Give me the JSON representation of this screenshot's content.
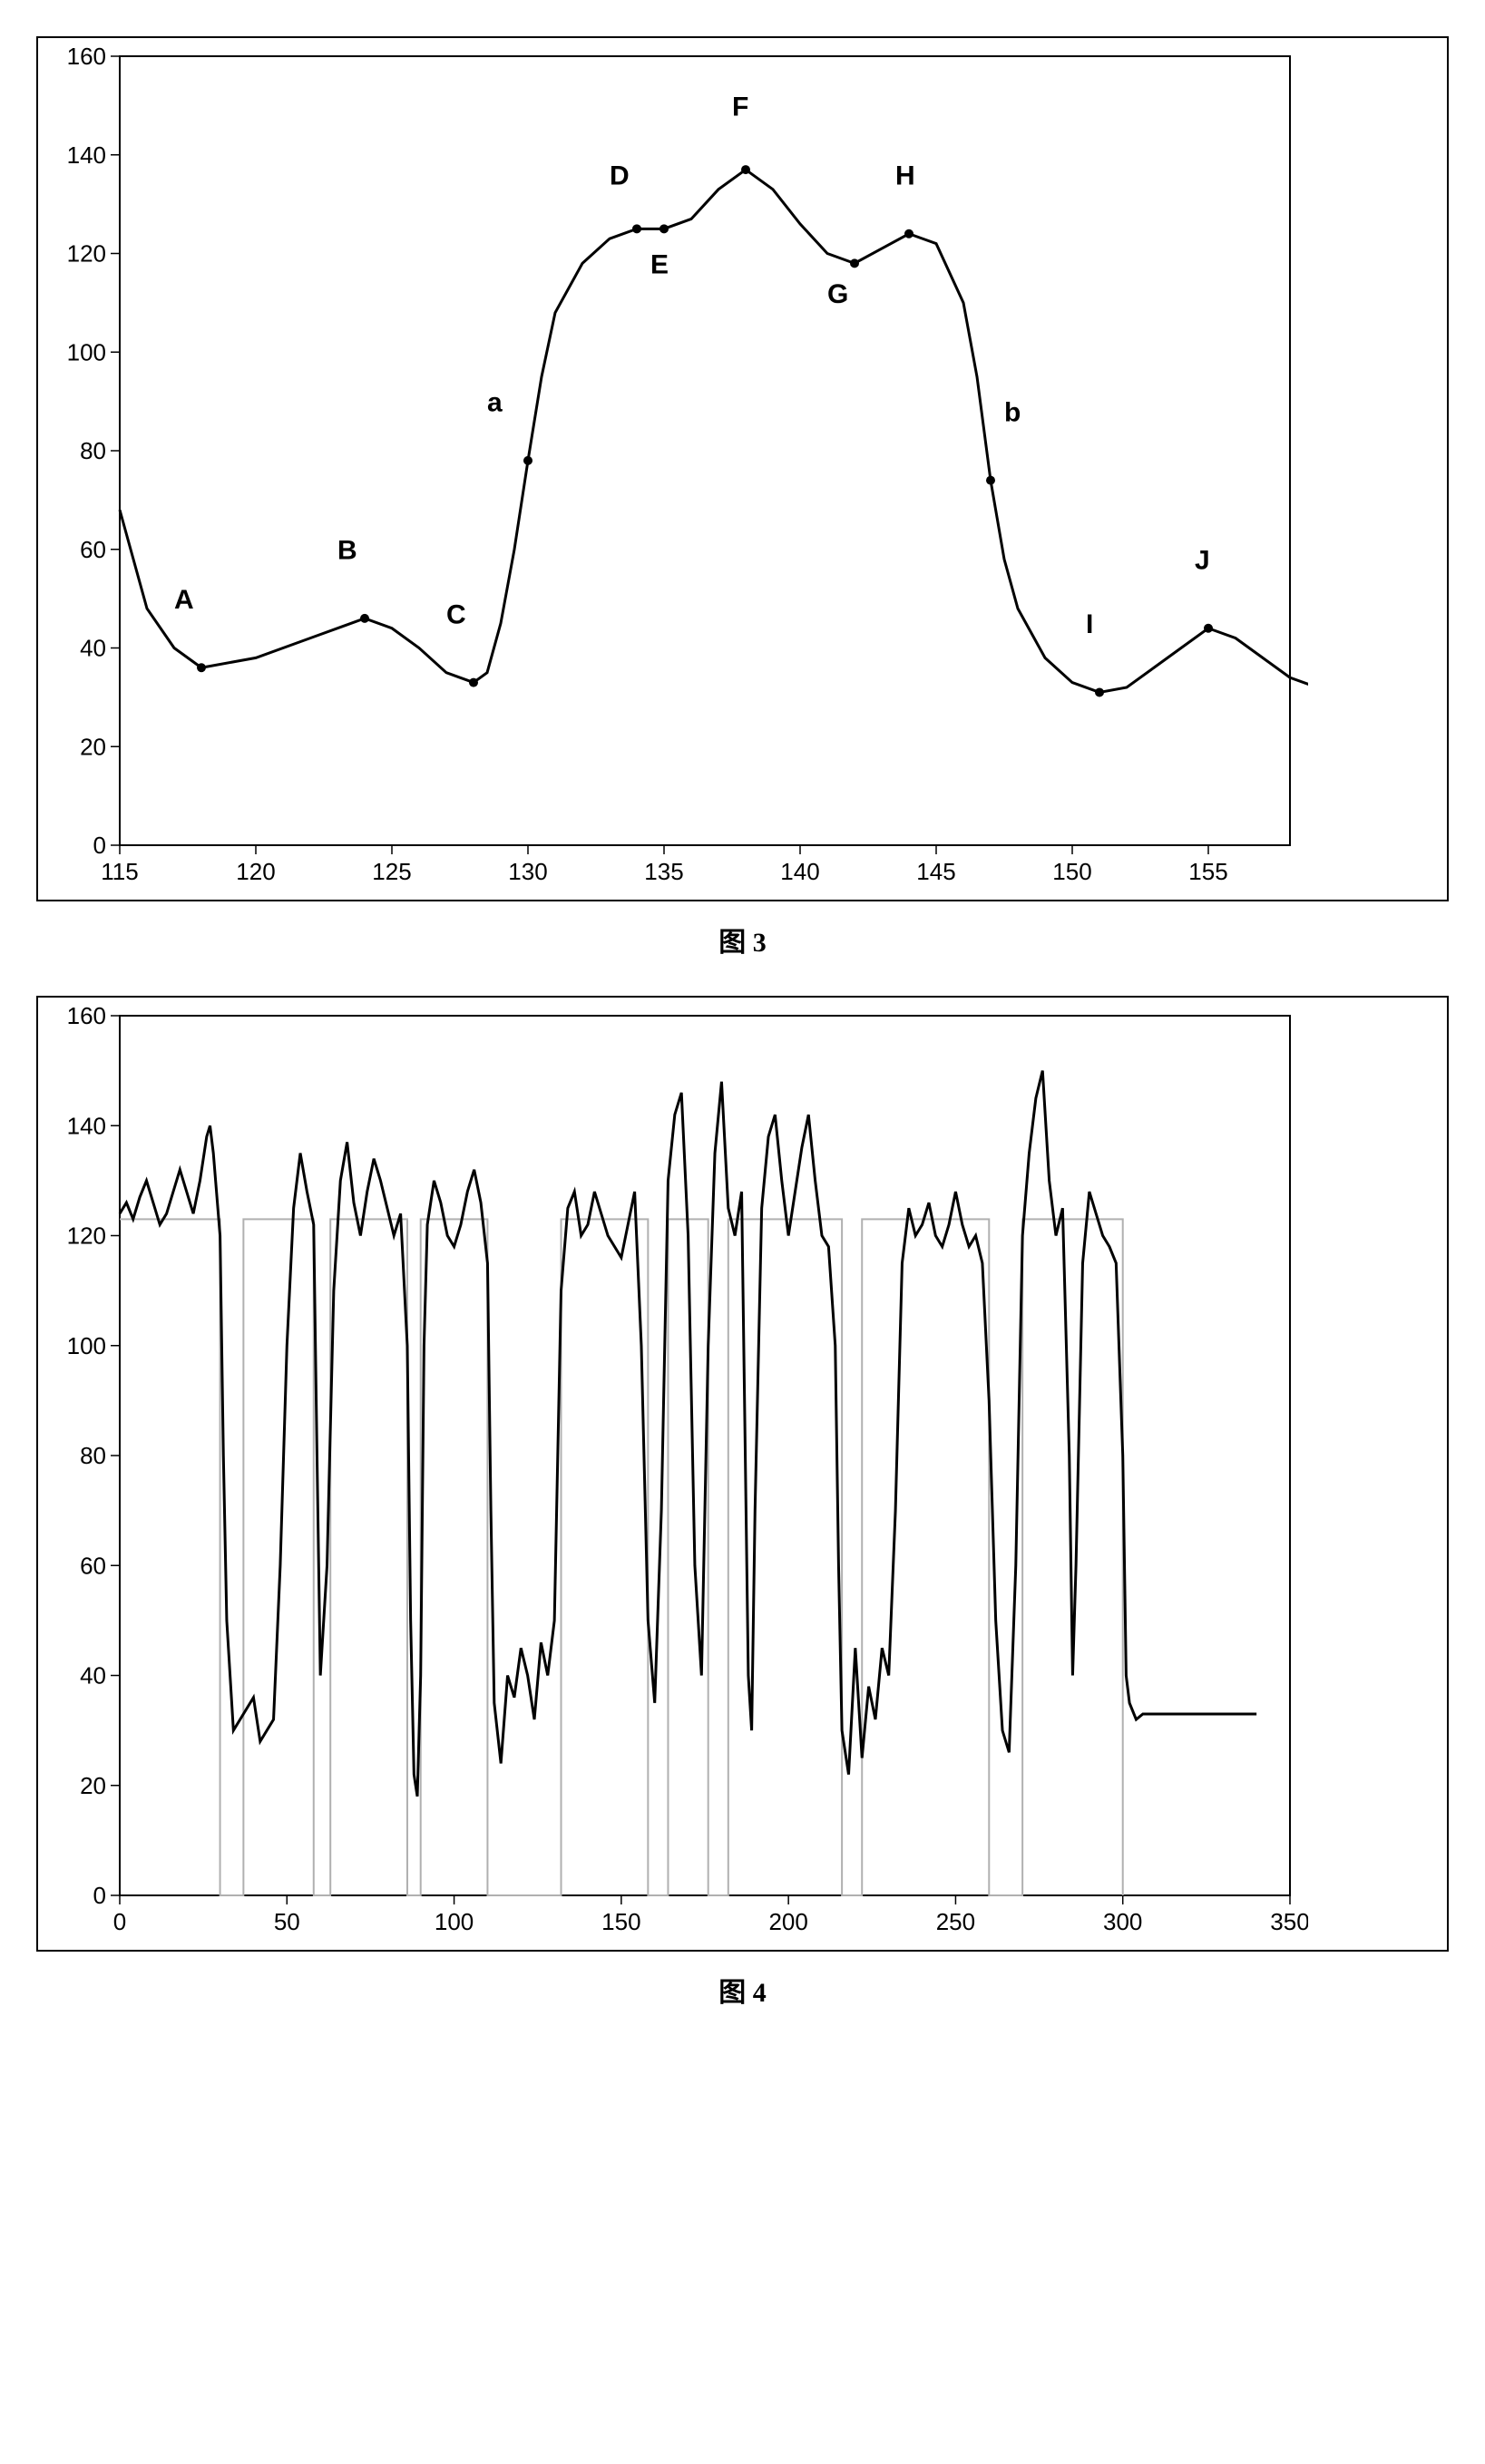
{
  "figure3": {
    "type": "line",
    "caption": "图 3",
    "xlim": [
      115,
      158
    ],
    "ylim": [
      0,
      160
    ],
    "xtick_start": 115,
    "xtick_step": 5,
    "xtick_end": 155,
    "ytick_start": 0,
    "ytick_step": 20,
    "ytick_end": 160,
    "background_color": "#ffffff",
    "border_color": "#000000",
    "line_color": "#000000",
    "line_width": 3,
    "point_color": "#000000",
    "point_radius": 5,
    "label_fontsize": 26,
    "point_label_fontsize": 30,
    "data": [
      [
        115,
        68
      ],
      [
        115.5,
        58
      ],
      [
        116,
        48
      ],
      [
        117,
        40
      ],
      [
        118,
        36
      ],
      [
        120,
        38
      ],
      [
        122,
        42
      ],
      [
        124,
        46
      ],
      [
        125,
        44
      ],
      [
        126,
        40
      ],
      [
        127,
        35
      ],
      [
        128,
        33
      ],
      [
        128.5,
        35
      ],
      [
        129,
        45
      ],
      [
        129.5,
        60
      ],
      [
        130,
        78
      ],
      [
        130.5,
        95
      ],
      [
        131,
        108
      ],
      [
        132,
        118
      ],
      [
        133,
        123
      ],
      [
        134,
        125
      ],
      [
        135,
        125
      ],
      [
        136,
        127
      ],
      [
        137,
        133
      ],
      [
        138,
        137
      ],
      [
        139,
        133
      ],
      [
        140,
        126
      ],
      [
        141,
        120
      ],
      [
        142,
        118
      ],
      [
        143,
        121
      ],
      [
        144,
        124
      ],
      [
        145,
        122
      ],
      [
        146,
        110
      ],
      [
        146.5,
        95
      ],
      [
        147,
        74
      ],
      [
        147.5,
        58
      ],
      [
        148,
        48
      ],
      [
        149,
        38
      ],
      [
        150,
        33
      ],
      [
        151,
        31
      ],
      [
        152,
        32
      ],
      [
        153,
        36
      ],
      [
        154,
        40
      ],
      [
        155,
        44
      ],
      [
        156,
        42
      ],
      [
        157,
        38
      ],
      [
        158,
        34
      ],
      [
        159,
        32
      ]
    ],
    "labeled_points": [
      {
        "label": "A",
        "x": 118,
        "y": 36,
        "lx": 117,
        "ly": 48
      },
      {
        "label": "B",
        "x": 124,
        "y": 46,
        "lx": 123,
        "ly": 58
      },
      {
        "label": "C",
        "x": 128,
        "y": 33,
        "lx": 127,
        "ly": 45
      },
      {
        "label": "a",
        "x": 130,
        "y": 78,
        "lx": 128.5,
        "ly": 88
      },
      {
        "label": "D",
        "x": 134,
        "y": 125,
        "lx": 133,
        "ly": 134
      },
      {
        "label": "E",
        "x": 135,
        "y": 125,
        "lx": 134.5,
        "ly": 116
      },
      {
        "label": "F",
        "x": 138,
        "y": 137,
        "lx": 137.5,
        "ly": 148
      },
      {
        "label": "G",
        "x": 142,
        "y": 118,
        "lx": 141,
        "ly": 110
      },
      {
        "label": "H",
        "x": 144,
        "y": 124,
        "lx": 143.5,
        "ly": 134
      },
      {
        "label": "b",
        "x": 147,
        "y": 74,
        "lx": 147.5,
        "ly": 86
      },
      {
        "label": "I",
        "x": 151,
        "y": 31,
        "lx": 150.5,
        "ly": 43
      },
      {
        "label": "J",
        "x": 155,
        "y": 44,
        "lx": 154.5,
        "ly": 56
      }
    ]
  },
  "figure4": {
    "type": "line",
    "caption": "图 4",
    "xlim": [
      0,
      350
    ],
    "ylim": [
      0,
      160
    ],
    "xtick_start": 0,
    "xtick_step": 50,
    "xtick_end": 350,
    "ytick_start": 0,
    "ytick_step": 20,
    "ytick_end": 160,
    "background_color": "#ffffff",
    "border_color": "#000000",
    "line_color": "#000000",
    "line_width": 2,
    "square_color": "#b0b0b0",
    "square_width": 2,
    "label_fontsize": 26,
    "square_level_high": 123,
    "square_level_low": 0,
    "square_segments": [
      [
        0,
        30
      ],
      [
        37,
        58
      ],
      [
        63,
        86
      ],
      [
        90,
        110
      ],
      [
        132,
        158
      ],
      [
        164,
        176
      ],
      [
        182,
        216
      ],
      [
        222,
        260
      ],
      [
        270,
        300
      ]
    ],
    "data": [
      [
        0,
        124
      ],
      [
        2,
        126
      ],
      [
        4,
        123
      ],
      [
        6,
        127
      ],
      [
        8,
        130
      ],
      [
        10,
        126
      ],
      [
        12,
        122
      ],
      [
        14,
        124
      ],
      [
        16,
        128
      ],
      [
        18,
        132
      ],
      [
        20,
        128
      ],
      [
        22,
        124
      ],
      [
        24,
        130
      ],
      [
        26,
        138
      ],
      [
        27,
        140
      ],
      [
        28,
        135
      ],
      [
        30,
        120
      ],
      [
        31,
        80
      ],
      [
        32,
        50
      ],
      [
        34,
        30
      ],
      [
        36,
        32
      ],
      [
        38,
        34
      ],
      [
        40,
        36
      ],
      [
        42,
        28
      ],
      [
        44,
        30
      ],
      [
        46,
        32
      ],
      [
        48,
        60
      ],
      [
        50,
        100
      ],
      [
        52,
        125
      ],
      [
        54,
        135
      ],
      [
        56,
        128
      ],
      [
        58,
        122
      ],
      [
        59,
        80
      ],
      [
        60,
        40
      ],
      [
        62,
        60
      ],
      [
        64,
        110
      ],
      [
        66,
        130
      ],
      [
        68,
        137
      ],
      [
        70,
        126
      ],
      [
        72,
        120
      ],
      [
        74,
        128
      ],
      [
        76,
        134
      ],
      [
        78,
        130
      ],
      [
        80,
        125
      ],
      [
        82,
        120
      ],
      [
        84,
        124
      ],
      [
        86,
        100
      ],
      [
        87,
        50
      ],
      [
        88,
        22
      ],
      [
        89,
        18
      ],
      [
        90,
        40
      ],
      [
        91,
        100
      ],
      [
        92,
        122
      ],
      [
        94,
        130
      ],
      [
        96,
        126
      ],
      [
        98,
        120
      ],
      [
        100,
        118
      ],
      [
        102,
        122
      ],
      [
        104,
        128
      ],
      [
        106,
        132
      ],
      [
        108,
        126
      ],
      [
        110,
        115
      ],
      [
        111,
        70
      ],
      [
        112,
        35
      ],
      [
        114,
        24
      ],
      [
        116,
        40
      ],
      [
        118,
        36
      ],
      [
        120,
        45
      ],
      [
        122,
        40
      ],
      [
        124,
        32
      ],
      [
        126,
        46
      ],
      [
        128,
        40
      ],
      [
        130,
        50
      ],
      [
        132,
        110
      ],
      [
        134,
        125
      ],
      [
        136,
        128
      ],
      [
        138,
        120
      ],
      [
        140,
        122
      ],
      [
        142,
        128
      ],
      [
        144,
        124
      ],
      [
        146,
        120
      ],
      [
        148,
        118
      ],
      [
        150,
        116
      ],
      [
        152,
        122
      ],
      [
        154,
        128
      ],
      [
        156,
        100
      ],
      [
        158,
        50
      ],
      [
        160,
        35
      ],
      [
        162,
        70
      ],
      [
        164,
        130
      ],
      [
        166,
        142
      ],
      [
        168,
        146
      ],
      [
        170,
        120
      ],
      [
        172,
        60
      ],
      [
        174,
        40
      ],
      [
        176,
        100
      ],
      [
        178,
        135
      ],
      [
        180,
        148
      ],
      [
        182,
        125
      ],
      [
        184,
        120
      ],
      [
        186,
        128
      ],
      [
        188,
        40
      ],
      [
        189,
        30
      ],
      [
        190,
        70
      ],
      [
        192,
        125
      ],
      [
        194,
        138
      ],
      [
        196,
        142
      ],
      [
        198,
        130
      ],
      [
        200,
        120
      ],
      [
        202,
        128
      ],
      [
        204,
        136
      ],
      [
        206,
        142
      ],
      [
        208,
        130
      ],
      [
        210,
        120
      ],
      [
        212,
        118
      ],
      [
        214,
        100
      ],
      [
        215,
        60
      ],
      [
        216,
        30
      ],
      [
        218,
        22
      ],
      [
        220,
        45
      ],
      [
        222,
        25
      ],
      [
        224,
        38
      ],
      [
        226,
        32
      ],
      [
        228,
        45
      ],
      [
        230,
        40
      ],
      [
        232,
        70
      ],
      [
        234,
        115
      ],
      [
        236,
        125
      ],
      [
        238,
        120
      ],
      [
        240,
        122
      ],
      [
        242,
        126
      ],
      [
        244,
        120
      ],
      [
        246,
        118
      ],
      [
        248,
        122
      ],
      [
        250,
        128
      ],
      [
        252,
        122
      ],
      [
        254,
        118
      ],
      [
        256,
        120
      ],
      [
        258,
        115
      ],
      [
        260,
        90
      ],
      [
        262,
        50
      ],
      [
        264,
        30
      ],
      [
        266,
        26
      ],
      [
        268,
        60
      ],
      [
        270,
        120
      ],
      [
        272,
        135
      ],
      [
        274,
        145
      ],
      [
        276,
        150
      ],
      [
        278,
        130
      ],
      [
        280,
        120
      ],
      [
        282,
        125
      ],
      [
        284,
        80
      ],
      [
        285,
        40
      ],
      [
        286,
        60
      ],
      [
        288,
        115
      ],
      [
        290,
        128
      ],
      [
        292,
        124
      ],
      [
        294,
        120
      ],
      [
        296,
        118
      ],
      [
        298,
        115
      ],
      [
        300,
        80
      ],
      [
        301,
        40
      ],
      [
        302,
        35
      ],
      [
        304,
        32
      ],
      [
        306,
        33
      ],
      [
        310,
        33
      ],
      [
        320,
        33
      ],
      [
        330,
        33
      ],
      [
        340,
        33
      ]
    ]
  }
}
